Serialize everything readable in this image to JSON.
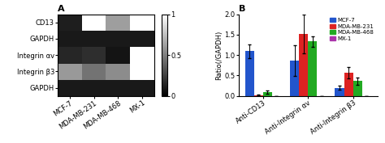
{
  "chart_data": [
    {
      "type": "heatmap",
      "title": "A",
      "x": [
        "MCF-7",
        "MDA-MB-231",
        "MDA-MB-468",
        "MX-1"
      ],
      "y": [
        "CD13",
        "GAPDH",
        "Integrin αv",
        "Integrin β3",
        "GAPDH"
      ],
      "cells": [
        [
          0.12,
          null,
          0.62,
          null
        ],
        [
          0.1,
          0.1,
          0.1,
          0.1
        ],
        [
          0.15,
          0.18,
          0.08,
          null
        ],
        [
          0.6,
          0.45,
          0.55,
          null
        ],
        [
          0.1,
          0.1,
          0.1,
          0.1
        ]
      ],
      "colorbar_range": [
        0,
        1
      ],
      "colorbar_ticks": [
        0,
        0.5,
        1
      ]
    },
    {
      "type": "bar",
      "title": "B",
      "categories": [
        "Anti-CD13",
        "Anti-Integrin αv",
        "Anti-Integrin β3"
      ],
      "series": [
        {
          "name": "MCF-7",
          "color": "#2255cc",
          "values": [
            1.1,
            0.87,
            0.2
          ],
          "errors": [
            0.17,
            0.38,
            0.05
          ]
        },
        {
          "name": "MDA-MB-231",
          "color": "#dd2222",
          "values": [
            0.02,
            1.52,
            0.57
          ],
          "errors": [
            0.01,
            0.47,
            0.14
          ]
        },
        {
          "name": "MDA-MB-468",
          "color": "#22aa22",
          "values": [
            0.1,
            1.33,
            0.36
          ],
          "errors": [
            0.04,
            0.12,
            0.09
          ]
        },
        {
          "name": "MX-1",
          "color": "#aa33aa",
          "values": [
            0.0,
            0.0,
            0.0
          ],
          "errors": [
            0.0,
            0.0,
            0.0
          ]
        }
      ],
      "ylabel": "Ratio(/GAPDH)",
      "ylim": [
        0.0,
        2.0
      ],
      "yticks": [
        0.0,
        0.5,
        1.0,
        1.5,
        2.0
      ],
      "legend": "upper right"
    }
  ]
}
